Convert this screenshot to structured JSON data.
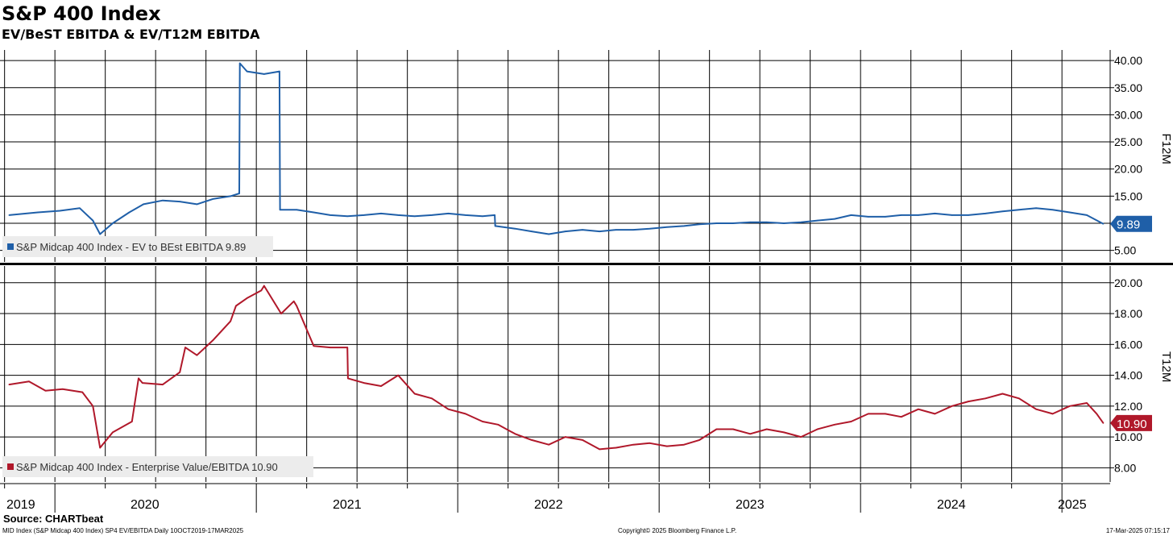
{
  "title": "S&P 400 Index",
  "subtitle": "EV/BeST EBITDA & EV/T12M EBITDA",
  "source": "Source: CHARTbeat",
  "footer": {
    "left": "MID Index (S&P Midcap 400 Index) SP4 EV/EBITDA  Daily 10OCT2019-17MAR2025",
    "center": "Copyright© 2025 Bloomberg Finance L.P.",
    "right": "17-Mar-2025 07:15:17"
  },
  "colors": {
    "top_series": "#1f5fa8",
    "bottom_series": "#b0182a",
    "grid": "#000000"
  },
  "chart_data": [
    {
      "type": "line",
      "panel": "top",
      "ylabel": "F12M",
      "ylim": [
        3,
        41
      ],
      "yticks": [
        "5.00",
        "10.00",
        "15.00",
        "20.00",
        "25.00",
        "30.00",
        "35.00",
        "40.00"
      ],
      "grid": true,
      "legend_placement": "bottom-left",
      "series": [
        {
          "name": "S&P Midcap 400 Index - EV to BEst EBITDA 9.89",
          "last_value": "9.89",
          "x": [
            "2019-10-10",
            "2019-12-01",
            "2020-01-10",
            "2020-02-15",
            "2020-03-10",
            "2020-03-23",
            "2020-04-15",
            "2020-05-15",
            "2020-06-10",
            "2020-07-15",
            "2020-08-15",
            "2020-09-15",
            "2020-10-15",
            "2020-11-15",
            "2020-12-01",
            "2020-12-02",
            "2020-12-15",
            "2021-01-15",
            "2021-02-12",
            "2021-02-13",
            "2021-03-15",
            "2021-04-15",
            "2021-05-15",
            "2021-06-15",
            "2021-07-15",
            "2021-08-15",
            "2021-09-15",
            "2021-10-15",
            "2021-11-15",
            "2021-12-15",
            "2022-01-15",
            "2022-02-15",
            "2022-03-09",
            "2022-03-10",
            "2022-04-15",
            "2022-05-15",
            "2022-06-15",
            "2022-07-15",
            "2022-08-15",
            "2022-09-15",
            "2022-10-15",
            "2022-11-15",
            "2022-12-15",
            "2023-01-15",
            "2023-02-15",
            "2023-03-15",
            "2023-04-15",
            "2023-05-15",
            "2023-06-15",
            "2023-07-15",
            "2023-08-15",
            "2023-09-15",
            "2023-10-15",
            "2023-11-15",
            "2023-12-15",
            "2024-01-15",
            "2024-02-15",
            "2024-03-15",
            "2024-04-15",
            "2024-05-15",
            "2024-06-15",
            "2024-07-15",
            "2024-08-15",
            "2024-09-15",
            "2024-10-15",
            "2024-11-15",
            "2024-12-15",
            "2025-01-15",
            "2025-02-15",
            "2025-03-17"
          ],
          "y": [
            11.5,
            12.0,
            12.3,
            12.8,
            10.5,
            8.0,
            10.0,
            12.0,
            13.5,
            14.2,
            14.0,
            13.5,
            14.5,
            15.0,
            15.5,
            39.5,
            38.0,
            37.5,
            38.0,
            12.5,
            12.5,
            12.0,
            11.5,
            11.3,
            11.5,
            11.8,
            11.5,
            11.3,
            11.5,
            11.8,
            11.5,
            11.3,
            11.5,
            9.5,
            9.0,
            8.5,
            8.0,
            8.5,
            8.8,
            8.5,
            8.8,
            8.8,
            9.0,
            9.3,
            9.5,
            9.8,
            10.0,
            10.0,
            10.2,
            10.2,
            10.0,
            10.2,
            10.5,
            10.8,
            11.5,
            11.2,
            11.2,
            11.5,
            11.5,
            11.8,
            11.5,
            11.5,
            11.8,
            12.2,
            12.5,
            12.8,
            12.5,
            12.0,
            11.5,
            9.89
          ]
        }
      ]
    },
    {
      "type": "line",
      "panel": "bottom",
      "ylabel": "T12M",
      "ylim": [
        7.2,
        20.6
      ],
      "yticks": [
        "8.00",
        "10.00",
        "12.00",
        "14.00",
        "16.00",
        "18.00",
        "20.00"
      ],
      "xticks": [
        "2019",
        "2020",
        "2021",
        "2022",
        "2023",
        "2024",
        "2025"
      ],
      "grid": true,
      "legend_placement": "bottom-left",
      "series": [
        {
          "name": "S&P Midcap 400 Index - Enterprise Value/EBITDA 10.90",
          "last_value": "10.90",
          "x": [
            "2019-10-10",
            "2019-11-15",
            "2019-12-15",
            "2020-01-15",
            "2020-02-20",
            "2020-03-10",
            "2020-03-23",
            "2020-04-15",
            "2020-05-20",
            "2020-06-01",
            "2020-06-08",
            "2020-07-15",
            "2020-08-15",
            "2020-08-25",
            "2020-09-15",
            "2020-10-15",
            "2020-11-15",
            "2020-11-25",
            "2020-12-15",
            "2021-01-10",
            "2021-01-15",
            "2021-02-15",
            "2021-03-10",
            "2021-03-15",
            "2021-04-15",
            "2021-05-15",
            "2021-06-15",
            "2021-06-16",
            "2021-07-15",
            "2021-08-15",
            "2021-09-15",
            "2021-10-15",
            "2021-11-15",
            "2021-12-15",
            "2022-01-15",
            "2022-02-15",
            "2022-03-15",
            "2022-04-15",
            "2022-05-15",
            "2022-06-15",
            "2022-07-15",
            "2022-08-15",
            "2022-09-15",
            "2022-10-15",
            "2022-11-15",
            "2022-12-15",
            "2023-01-15",
            "2023-02-15",
            "2023-03-15",
            "2023-04-15",
            "2023-05-15",
            "2023-06-15",
            "2023-07-15",
            "2023-08-15",
            "2023-09-15",
            "2023-10-15",
            "2023-11-15",
            "2023-12-15",
            "2024-01-15",
            "2024-02-15",
            "2024-03-15",
            "2024-04-15",
            "2024-05-15",
            "2024-06-15",
            "2024-07-15",
            "2024-08-15",
            "2024-09-15",
            "2024-10-15",
            "2024-11-15",
            "2024-12-15",
            "2025-01-15",
            "2025-02-15",
            "2025-03-05",
            "2025-03-17"
          ],
          "y": [
            13.4,
            13.6,
            13.0,
            13.1,
            12.9,
            12.0,
            9.3,
            10.3,
            11.0,
            13.8,
            13.5,
            13.4,
            14.2,
            15.8,
            15.3,
            16.3,
            17.5,
            18.5,
            19.0,
            19.5,
            19.8,
            18.0,
            18.8,
            18.5,
            15.9,
            15.8,
            15.8,
            13.8,
            13.5,
            13.3,
            14.0,
            12.8,
            12.5,
            11.8,
            11.5,
            11.0,
            10.8,
            10.2,
            9.8,
            9.5,
            10.0,
            9.8,
            9.2,
            9.3,
            9.5,
            9.6,
            9.4,
            9.5,
            9.8,
            10.5,
            10.5,
            10.2,
            10.5,
            10.3,
            10.0,
            10.5,
            10.8,
            11.0,
            11.5,
            11.5,
            11.3,
            11.8,
            11.5,
            12.0,
            12.3,
            12.5,
            12.8,
            12.5,
            11.8,
            11.5,
            12.0,
            12.2,
            11.5,
            10.9
          ]
        }
      ]
    }
  ]
}
